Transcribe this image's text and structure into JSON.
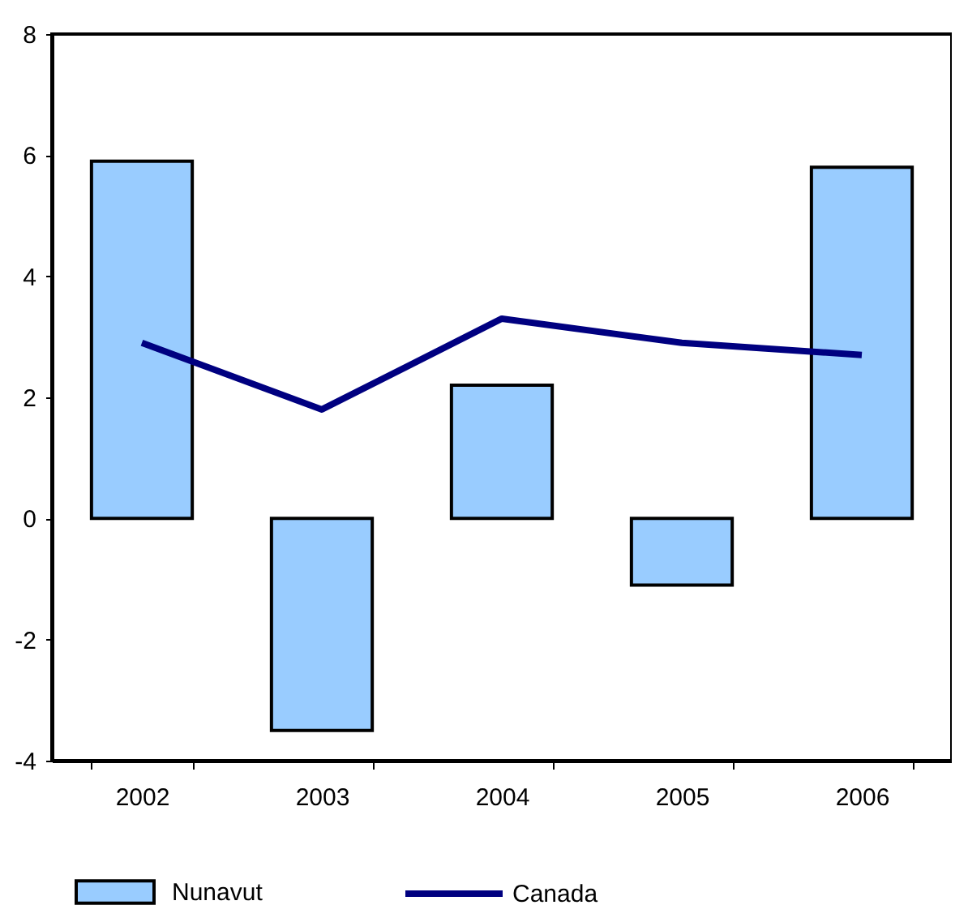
{
  "chart_data": {
    "type": "bar",
    "categories": [
      "2002",
      "2003",
      "2004",
      "2005",
      "2006"
    ],
    "series": [
      {
        "name": "Nunavut",
        "color": "#99ccff",
        "values": [
          5.9,
          -3.5,
          2.2,
          -1.1,
          5.8
        ]
      },
      {
        "name": "Canada",
        "type": "line",
        "color": "#000080",
        "values": [
          2.9,
          1.8,
          3.3,
          2.9,
          2.7
        ]
      }
    ],
    "ylim": [
      -4,
      8
    ],
    "yticks": [
      -4,
      -2,
      0,
      2,
      4,
      6,
      8
    ],
    "grid": false,
    "legend": "bottom"
  }
}
